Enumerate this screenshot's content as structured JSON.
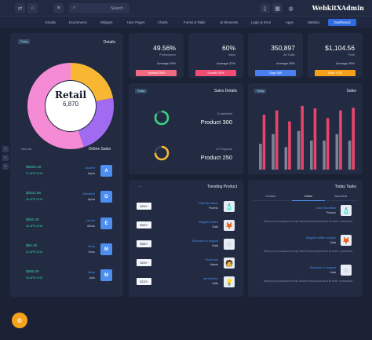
{
  "topbar": {
    "search_placeholder": "Search",
    "brand": "WebkitXAdmin",
    "icons": [
      "collapse-icon",
      "home-icon",
      "menu-icon",
      "search-icon",
      "phone-icon",
      "grid-icon",
      "globe-icon"
    ]
  },
  "nav": {
    "items": [
      "Emails",
      "Ecommerce",
      "Widgets",
      "User Pages",
      "Charts",
      "Forms & Table",
      "UI Elements",
      "Login & Error",
      "Apps",
      "Statitics"
    ],
    "dashboard": "Dashboard"
  },
  "retail": {
    "tag": "Today",
    "title": "Details",
    "center_label": "Retail",
    "center_value": "6,870",
    "segments": [
      {
        "name": "yellow",
        "value": 22,
        "color": "#f7b733"
      },
      {
        "name": "purple",
        "value": 23,
        "color": "#a06bf0"
      },
      {
        "name": "pink",
        "value": 55,
        "color": "#f58bd4"
      }
    ]
  },
  "online_sales": {
    "view_all": "View All",
    "title": "Online Sales",
    "rows": [
      {
        "amount": "$3500.29",
        "date": "27.APR.2019",
        "name": "Anaeet",
        "sub": "Alpha",
        "letter": "A"
      },
      {
        "amount": "$2641.56",
        "date": "26.APR.2019",
        "name": "Ashaleet",
        "sub": "Alpha",
        "letter": "G"
      },
      {
        "amount": "$550.29",
        "date": "26.APR.2019",
        "name": "Lalnan",
        "sub": "Minak",
        "letter": "E"
      },
      {
        "amount": "$50.29",
        "date": "22.APR.2019",
        "name": "Mota",
        "sub": "Dirac",
        "letter": "M"
      },
      {
        "amount": "$350.29",
        "date": "26.APR.2019",
        "name": "Mota",
        "sub": "Jahn",
        "letter": "M"
      }
    ]
  },
  "kpis": [
    {
      "value": "49.56%",
      "label": "Performance",
      "sub": "Average 25%",
      "bar": "+Added 2500",
      "color": "#f06a82"
    },
    {
      "value": "60%",
      "label": "Sales",
      "sub": "Average 22%",
      "bar": "Growth 25%",
      "color": "#ef4d73"
    },
    {
      "value": "350,897",
      "label": "All Traffic",
      "sub": "Average 25%",
      "bar": "Days 365",
      "color": "#4a7ff0"
    },
    {
      "value": "$1,104.56",
      "label": "Profit",
      "sub": "Average 25%",
      "bar": "Save +122",
      "color": "#f5a21a"
    }
  ],
  "sales_details": {
    "tag": "Today",
    "title": "Sales Details",
    "items": [
      {
        "status": "Completed",
        "product": "Product 300",
        "color": "#39d27e",
        "fraction": 0.85
      },
      {
        "status": "In Progress",
        "product": "Product 250",
        "color": "#f7b733",
        "fraction": 0.75
      }
    ]
  },
  "sales_chart": {
    "tag": "Today",
    "title": "Sales"
  },
  "chart_data": {
    "type": "bar",
    "categories": [
      "1",
      "2",
      "3",
      "4",
      "5",
      "6",
      "7",
      "8"
    ],
    "series": [
      {
        "values": [
          85,
          92,
          75,
          99,
          95,
          80,
          92,
          96
        ],
        "color": "#e8456a"
      },
      {
        "values": [
          40,
          55,
          35,
          60,
          45,
          45,
          55,
          45
        ],
        "color": "#7c8496"
      }
    ],
    "ylim": [
      0,
      100
    ]
  },
  "trending": {
    "dots": "...",
    "title": "Trending Product",
    "rows": [
      {
        "btn": "$260+",
        "name": "Dark Bootflow",
        "sub": "Phoenix",
        "icon": "bottle-icon",
        "glyph": "🧴"
      },
      {
        "btn": "$500+",
        "name": "Magnifi selfier",
        "sub": "Nulla",
        "icon": "fox-icon",
        "glyph": "🦊"
      },
      {
        "btn": "$580+",
        "name": "Blossom in magna",
        "sub": "Nulla",
        "icon": "gear-icon",
        "glyph": "⚙"
      },
      {
        "btn": "$200+",
        "name": "Phoenixe",
        "sub": "Alamet",
        "icon": "person-icon",
        "glyph": "🧑"
      },
      {
        "btn": "$220+",
        "name": "sercfebber",
        "sub": "Nulla",
        "icon": "bulb-icon",
        "glyph": "💡"
      }
    ]
  },
  "tasks": {
    "title": "Today Tasks",
    "tabs": [
      "Contact",
      "Notes",
      "Important"
    ],
    "active_tab": 1,
    "rows": [
      {
        "name": "Dark Bootflow",
        "sub": "Phoenix",
        "text": "Neque porro quisquam est qui dolorem ipsum quia dolor sit amet, consectetur.",
        "icon": "bottle-icon",
        "glyph": "🧴"
      },
      {
        "name": "Magnifi selfier engine",
        "sub": "Nulla",
        "text": "Neque porro quisquam est qui dolorem ipsum quia dolor sit amet, consectetur.",
        "icon": "fox-icon",
        "glyph": "🦊"
      },
      {
        "name": "Blossom in magna",
        "sub": "Nulla",
        "text": "Neque porro quisquam est qui dolorem ipsum quia dolor sit amet, consectetur.",
        "icon": "gear-icon",
        "glyph": "⚙"
      }
    ]
  }
}
